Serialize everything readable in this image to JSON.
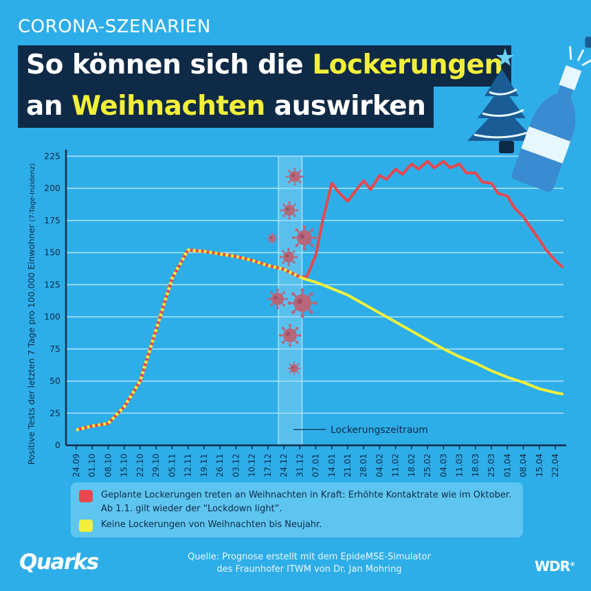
{
  "kicker": "CORONA-SZENARIEN",
  "title": {
    "line1_pre": "So können sich die ",
    "line1_hl": "Lockerungen",
    "line2_pre": "an ",
    "line2_hl": "Weihnachten",
    "line2_post": " auswirken"
  },
  "icons": [
    "christmas-tree-icon",
    "champagne-bottle-icon",
    "virus-icon"
  ],
  "colors": {
    "background": "#2eaee8",
    "title_bar": "#0f2a47",
    "highlight": "#f2ef3a",
    "red_series": "#e8474e",
    "yellow_series": "#f2ef3a"
  },
  "chart_data": {
    "type": "line",
    "ylabel": "Positive Tests der letzten 7 Tage pro 100.000 Einwohner",
    "ylabel_suffix": "(7-Tage-Inzidenz)",
    "ylim": [
      0,
      225
    ],
    "yticks": [
      0,
      25,
      50,
      75,
      100,
      125,
      150,
      175,
      200,
      225
    ],
    "grid": true,
    "xticks": [
      "24.09",
      "01.10",
      "08.10",
      "15.10",
      "22.10",
      "29.10",
      "05.11",
      "12.11",
      "19.11",
      "26.11",
      "03.12",
      "10.12",
      "17.12",
      "24.12",
      "31.12",
      "07.01",
      "14.01",
      "21.01",
      "28.01",
      "04.02",
      "11.02",
      "18.02",
      "25.02",
      "04.03",
      "11.03",
      "18.03",
      "25.03",
      "01.04",
      "08.04",
      "15.04",
      "22.04"
    ],
    "annotation": "Lockerungszeitraum",
    "highlight_range": [
      "24.12",
      "01.01"
    ],
    "series": [
      {
        "name": "Geplante Lockerungen treten an Weihnachten in Kraft: Erhöhte Kontaktrate wie im Oktober. Ab 1.1. gilt wieder der “Lockdown light”.",
        "color": "#e8474e",
        "x": [
          "24.09",
          "01.10",
          "08.10",
          "15.10",
          "22.10",
          "29.10",
          "05.11",
          "12.11",
          "19.11",
          "26.11",
          "03.12",
          "10.12",
          "17.12",
          "24.12",
          "31.12",
          "03.01",
          "07.01",
          "10.01",
          "14.01",
          "17.01",
          "21.01",
          "24.01",
          "28.01",
          "31.01",
          "04.02",
          "07.02",
          "11.02",
          "14.02",
          "18.02",
          "21.02",
          "25.02",
          "28.02",
          "04.03",
          "07.03",
          "11.03",
          "14.03",
          "18.03",
          "21.03",
          "25.03",
          "28.03",
          "01.04",
          "04.04",
          "08.04",
          "11.04",
          "15.04",
          "18.04",
          "22.04",
          "25.04"
        ],
        "values": [
          12,
          15,
          17,
          30,
          50,
          90,
          130,
          152,
          151,
          149,
          147,
          144,
          140,
          137,
          131,
          131,
          148,
          175,
          204,
          197,
          190,
          197,
          206,
          199,
          210,
          207,
          215,
          211,
          219,
          215,
          221,
          216,
          221,
          216,
          219,
          212,
          212,
          205,
          204,
          196,
          194,
          185,
          178,
          170,
          160,
          152,
          144,
          139
        ]
      },
      {
        "name": "Keine Lockerungen von Weihnachten bis Neujahr.",
        "color": "#f2ef3a",
        "x": [
          "24.09",
          "01.10",
          "08.10",
          "15.10",
          "22.10",
          "29.10",
          "05.11",
          "12.11",
          "19.11",
          "26.11",
          "03.12",
          "10.12",
          "17.12",
          "24.12",
          "31.12",
          "03.01",
          "07.01",
          "14.01",
          "21.01",
          "28.01",
          "04.02",
          "11.02",
          "18.02",
          "25.02",
          "04.03",
          "11.03",
          "18.03",
          "25.03",
          "01.04",
          "08.04",
          "15.04",
          "22.04",
          "25.04"
        ],
        "values": [
          12,
          15,
          17,
          30,
          50,
          90,
          130,
          152,
          151,
          149,
          147,
          144,
          140,
          137,
          131,
          129,
          127,
          122,
          117,
          110,
          103,
          96,
          89,
          82,
          75,
          69,
          64,
          58,
          53,
          49,
          44,
          41,
          40
        ]
      }
    ]
  },
  "legend": {
    "red_text": "Geplante Lockerungen treten an Weihnachten in Kraft: Erhöhte Kontaktrate wie im Oktober. Ab 1.1. gilt wieder der “Lockdown light”.",
    "yellow_text": "Keine Lockerungen von Weihnachten bis Neujahr."
  },
  "footer": {
    "source_line1": "Quelle: Prognose erstellt mit dem EpideMSE-Simulator",
    "source_line2": "des Fraunhofer ITWM von Dr. Jan Mohring",
    "brand_left": "Quarks",
    "brand_right": "WDR"
  }
}
